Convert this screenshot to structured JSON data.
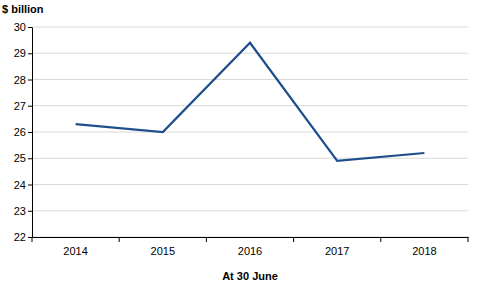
{
  "chart_data": {
    "type": "line",
    "y_label": "$ billion",
    "x_label": "At 30 June",
    "categories": [
      "2014",
      "2015",
      "2016",
      "2017",
      "2018"
    ],
    "values": [
      26.3,
      26.0,
      29.4,
      24.9,
      25.2
    ],
    "color": "#1f4e8c",
    "ylim": [
      22,
      30
    ],
    "yticks": [
      22,
      23,
      24,
      25,
      26,
      27,
      28,
      29,
      30
    ],
    "grid": true
  }
}
